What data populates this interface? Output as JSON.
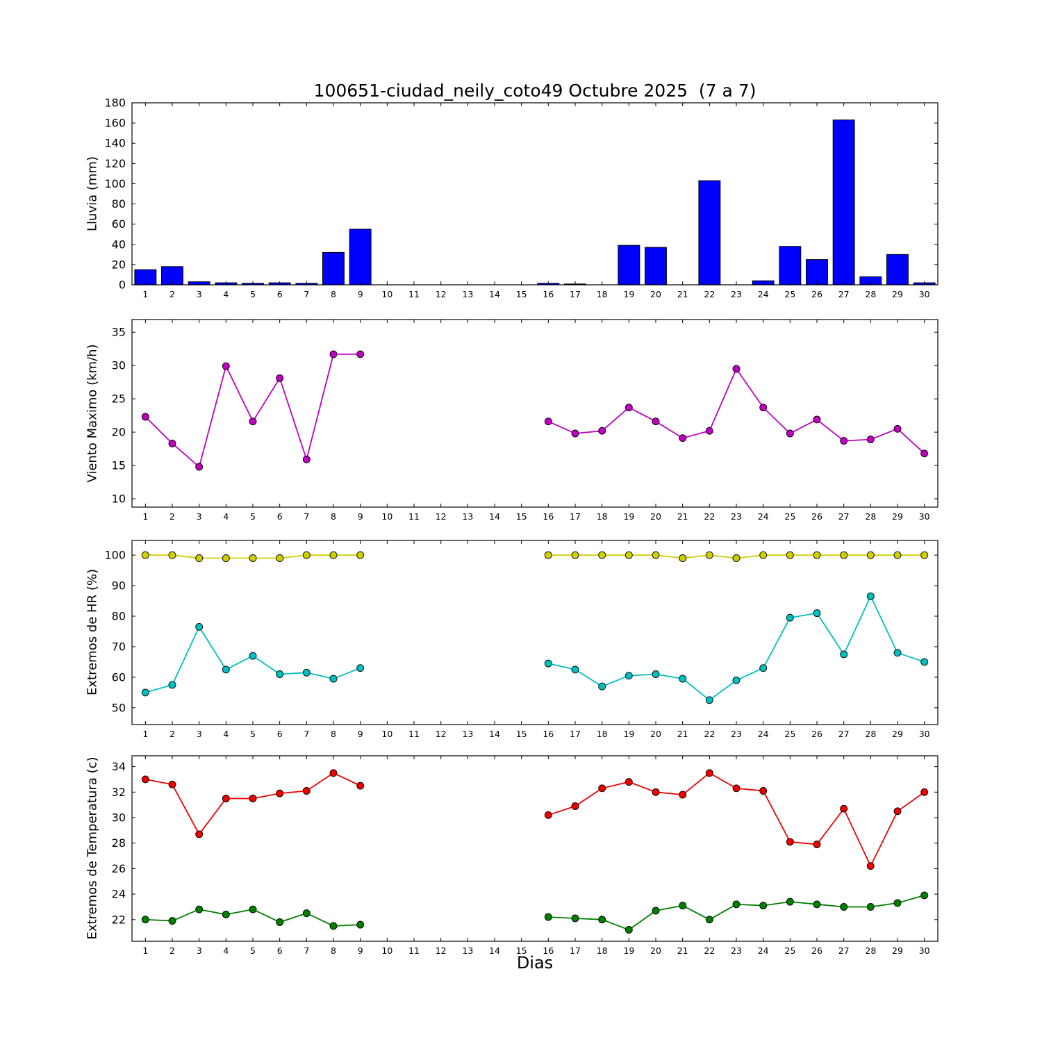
{
  "chart_data": {
    "type": "multi-panel",
    "title": "100651-ciudad_neily_coto49 Octubre 2025  (7 a 7)",
    "xlabel": "Dias",
    "days": [
      1,
      2,
      3,
      4,
      5,
      6,
      7,
      8,
      9,
      10,
      11,
      12,
      13,
      14,
      15,
      16,
      17,
      18,
      19,
      20,
      21,
      22,
      23,
      24,
      25,
      26,
      27,
      28,
      29,
      30
    ],
    "xlim": [
      0.5,
      30.5
    ],
    "grid": false,
    "legend": "none",
    "subplots": [
      {
        "id": "lluvia",
        "type": "bar",
        "ylabel": "Lluvia (mm)",
        "ylim": [
          0,
          180
        ],
        "yticks": [
          0,
          20,
          40,
          60,
          80,
          100,
          120,
          140,
          160,
          180
        ],
        "series": [
          {
            "name": "lluvia_mm",
            "color": "#0000ff",
            "values": [
              15,
              18,
              3,
              2,
              1.5,
              2,
              1.5,
              32,
              55,
              0,
              0,
              0,
              0,
              0,
              0,
              1.5,
              0.8,
              0,
              39,
              37,
              0,
              103,
              0,
              4,
              38,
              25,
              163,
              8,
              30,
              2
            ]
          }
        ]
      },
      {
        "id": "viento",
        "type": "line",
        "ylabel": "Viento Maximo (km/h)",
        "ylim": [
          8.75,
          36.9
        ],
        "yticks": [
          10,
          15,
          20,
          25,
          30,
          35
        ],
        "series": [
          {
            "name": "viento_maximo",
            "color": "#bf00bf",
            "values": [
              22.3,
              18.3,
              14.8,
              29.9,
              21.6,
              28.1,
              15.9,
              31.7,
              31.7,
              null,
              null,
              null,
              null,
              null,
              null,
              21.6,
              19.8,
              20.2,
              23.7,
              21.6,
              19.1,
              20.2,
              29.5,
              23.7,
              19.8,
              21.9,
              18.7,
              18.9,
              20.5,
              16.8
            ]
          }
        ]
      },
      {
        "id": "hr",
        "type": "line",
        "ylabel": "Extremos de HR (%)",
        "ylim": [
          44.5,
          104.8
        ],
        "yticks": [
          50,
          60,
          70,
          80,
          90,
          100
        ],
        "series": [
          {
            "name": "hr_maxima",
            "color": "#cfcf00",
            "values": [
              100,
              100,
              99,
              99,
              99,
              99,
              100,
              100,
              100,
              null,
              null,
              null,
              null,
              null,
              null,
              100,
              100,
              100,
              100,
              100,
              99,
              100,
              99,
              100,
              100,
              100,
              100,
              100,
              100,
              100
            ]
          },
          {
            "name": "hr_minima",
            "color": "#00bfbf",
            "values": [
              55,
              57.5,
              76.5,
              62.5,
              67,
              61,
              61.5,
              59.5,
              63,
              null,
              null,
              null,
              null,
              null,
              null,
              64.5,
              62.5,
              57,
              60.5,
              61,
              59.5,
              52.5,
              59,
              63,
              79.5,
              81,
              67.5,
              86.5,
              68,
              65
            ]
          }
        ]
      },
      {
        "id": "temperatura",
        "type": "line",
        "ylabel": "Extremos de Temperatura (c)",
        "ylim": [
          20.3,
          34.85
        ],
        "yticks": [
          22,
          24,
          26,
          28,
          30,
          32,
          34
        ],
        "series": [
          {
            "name": "temp_maxima",
            "color": "#ee0000",
            "values": [
              33.0,
              32.6,
              28.7,
              31.5,
              31.5,
              31.9,
              32.1,
              33.5,
              32.5,
              null,
              null,
              null,
              null,
              null,
              null,
              30.2,
              30.9,
              32.3,
              32.8,
              32.0,
              31.8,
              33.5,
              32.3,
              32.1,
              28.1,
              27.9,
              30.7,
              26.2,
              30.5,
              32.0
            ]
          },
          {
            "name": "temp_minima",
            "color": "#007f00",
            "values": [
              22.0,
              21.9,
              22.8,
              22.4,
              22.8,
              21.8,
              22.5,
              21.5,
              21.6,
              null,
              null,
              null,
              null,
              null,
              null,
              22.2,
              22.1,
              22.0,
              21.2,
              22.7,
              23.1,
              22.0,
              23.2,
              23.1,
              23.4,
              23.2,
              23.0,
              23.0,
              23.3,
              23.9
            ]
          }
        ]
      }
    ]
  }
}
